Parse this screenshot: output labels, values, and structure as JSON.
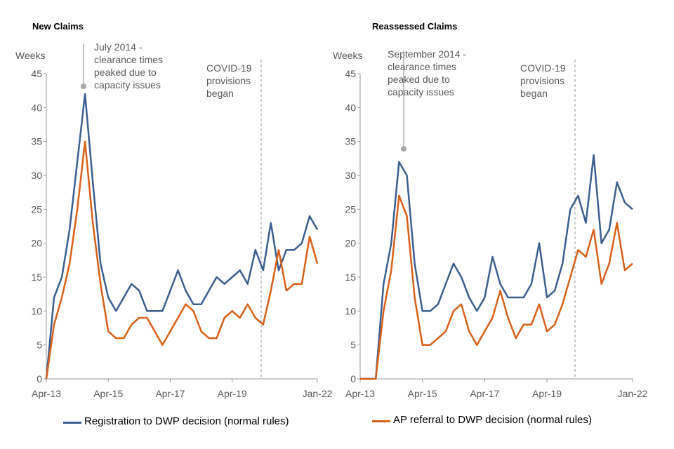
{
  "chart_data": [
    {
      "type": "line",
      "title": "New Claims",
      "ylabel": "Weeks",
      "categories": [
        "Apr-13",
        null,
        null,
        null,
        null,
        null,
        null,
        null,
        "Apr-15",
        null,
        null,
        null,
        null,
        null,
        null,
        null,
        "Apr-17",
        null,
        null,
        null,
        null,
        null,
        null,
        null,
        "Apr-19",
        null,
        null,
        null,
        null,
        null,
        null,
        null,
        null,
        null,
        null,
        "Jan-22"
      ],
      "ylim": [
        0,
        45
      ],
      "yticks": [
        0,
        5,
        10,
        15,
        20,
        25,
        30,
        35,
        40,
        45
      ],
      "annotations": [
        [
          "July 2014 -",
          "clearance times",
          "peaked due to",
          "capacity issues"
        ],
        [
          "COVID-19",
          "provisions",
          "began"
        ]
      ],
      "legend": "bottom",
      "series": [
        {
          "name": "Registration to DWP decision (normal rules)",
          "color": "#3b5f8e",
          "values": [
            0,
            12,
            15,
            22,
            32,
            42,
            29,
            17,
            12,
            10,
            12,
            14,
            13,
            10,
            10,
            10,
            13,
            16,
            13,
            11,
            11,
            13,
            15,
            14,
            15,
            16,
            14,
            19,
            16,
            23,
            16,
            19,
            19,
            20,
            24,
            22
          ]
        },
        {
          "name": "AP referral to DWP decision (normal rules)",
          "color": "#d9601a",
          "values": [
            0,
            8,
            12,
            17,
            25,
            35,
            23,
            14,
            7,
            6,
            6,
            8,
            9,
            9,
            7,
            5,
            7,
            9,
            11,
            10,
            7,
            6,
            6,
            9,
            10,
            9,
            11,
            9,
            8,
            13,
            19,
            13,
            14,
            14,
            21,
            17
          ]
        }
      ]
    },
    {
      "type": "line",
      "title": "Reassessed Claims",
      "ylabel": "Weeks",
      "categories": [
        "Apr-13",
        null,
        null,
        null,
        null,
        null,
        null,
        null,
        "Apr-15",
        null,
        null,
        null,
        null,
        null,
        null,
        null,
        "Apr-17",
        null,
        null,
        null,
        null,
        null,
        null,
        null,
        "Apr-19",
        null,
        null,
        null,
        null,
        null,
        null,
        null,
        null,
        null,
        null,
        "Jan-22"
      ],
      "ylim": [
        0,
        45
      ],
      "yticks": [
        0,
        5,
        10,
        15,
        20,
        25,
        30,
        35,
        40,
        45
      ],
      "annotations": [
        [
          "September 2014 -",
          "clearance times",
          "peaked due to",
          "capacity issues"
        ],
        [
          "COVID-19",
          "provisions",
          "began"
        ]
      ],
      "series": [
        {
          "color": "#3b5f8e",
          "values": [
            0,
            0,
            0,
            14,
            20,
            32,
            30,
            17,
            10,
            10,
            11,
            14,
            17,
            15,
            12,
            10,
            12,
            18,
            14,
            12,
            12,
            12,
            14,
            20,
            12,
            13,
            17,
            25,
            27,
            23,
            33,
            20,
            22,
            29,
            26,
            25
          ]
        },
        {
          "color": "#d9601a",
          "values": [
            0,
            0,
            0,
            10,
            16,
            27,
            24,
            12,
            5,
            5,
            6,
            7,
            10,
            11,
            7,
            5,
            7,
            9,
            13,
            9,
            6,
            8,
            8,
            11,
            7,
            8,
            11,
            15,
            19,
            18,
            22,
            14,
            17,
            23,
            16,
            17
          ]
        }
      ]
    }
  ]
}
